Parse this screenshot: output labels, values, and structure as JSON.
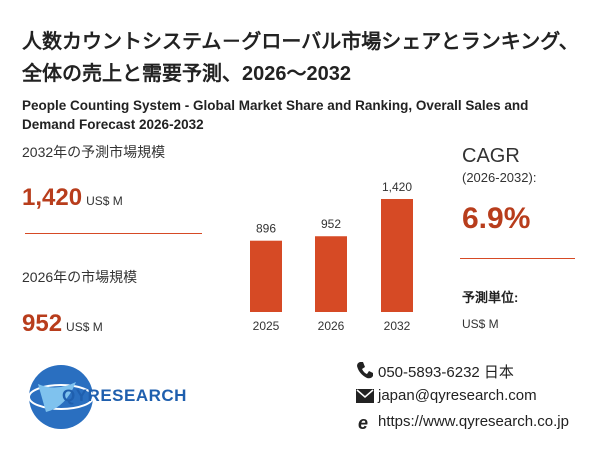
{
  "header": {
    "title": "人数カウントシステム－グローバル市場シェアとランキング、全体の売上と需要予測、2026～2032",
    "subtitle": "People Counting System - Global Market Share and Ranking, Overall Sales and Demand Forecast 2026-2032"
  },
  "forecast": {
    "label": "2032年の予測市場規模",
    "value": "1,420",
    "unit": "US$ M"
  },
  "current": {
    "label": "2026年の市場規模",
    "value": "952",
    "unit": "US$ M"
  },
  "chart_data": {
    "type": "bar",
    "categories": [
      "2025",
      "2026",
      "2032"
    ],
    "values": [
      896,
      952,
      1420
    ],
    "value_labels": [
      "896",
      "952",
      "1,420"
    ],
    "color": "#d64a25"
  },
  "cagr": {
    "label": "CAGR",
    "period": "(2026-2032):",
    "value": "6.9%"
  },
  "unit_info": {
    "label": "予測単位:",
    "value": "US$ M"
  },
  "logo": "QYRESEARCH",
  "contact": {
    "phone": "050-5893-6232 日本",
    "email": "japan@qyresearch.com",
    "url": "https://www.qyresearch.co.jp"
  }
}
